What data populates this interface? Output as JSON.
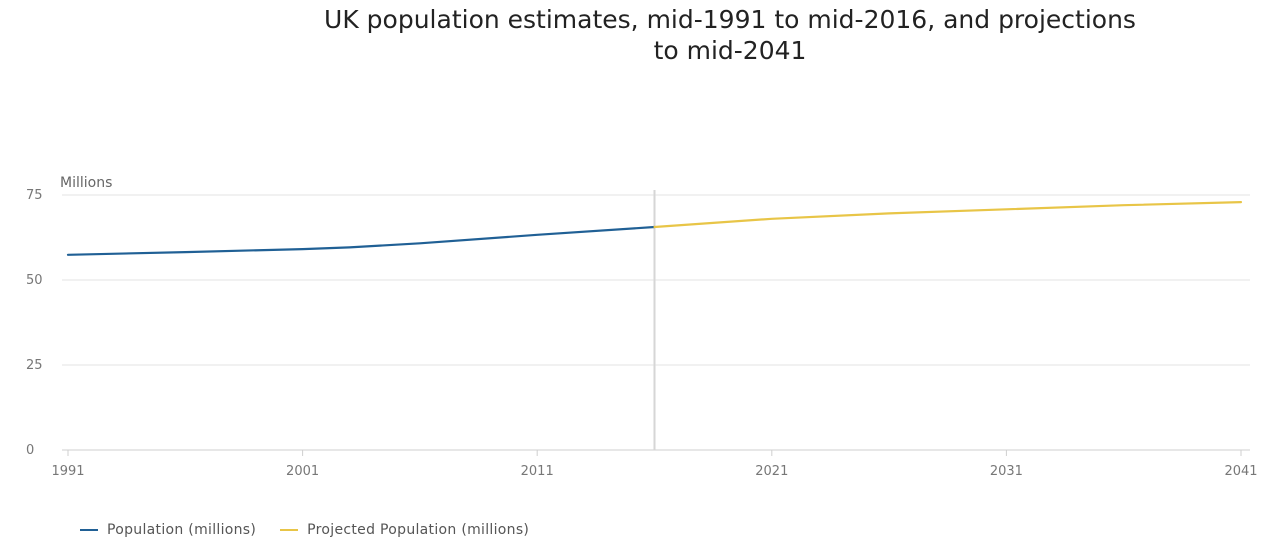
{
  "chart_data": {
    "type": "line",
    "title_line1": "UK population estimates, mid-1991 to mid-2016, and projections",
    "title_line2": "to mid-2041",
    "y_unit_label": "Millions",
    "xlabel": "",
    "ylabel": "",
    "xlim": [
      1991,
      2041
    ],
    "ylim": [
      0,
      80
    ],
    "x_ticks": [
      "1991",
      "2001",
      "2011",
      "2021",
      "2031",
      "2041"
    ],
    "y_ticks": [
      "0",
      "25",
      "50",
      "75"
    ],
    "grid": true,
    "legend_position": "bottom-left",
    "divider_year": 2016,
    "series": [
      {
        "name": "Population (millions)",
        "color": "#206095",
        "x": [
          1991,
          1996,
          2001,
          2003,
          2006,
          2011,
          2016
        ],
        "y": [
          57.4,
          58.2,
          59.1,
          59.6,
          60.8,
          63.3,
          65.6
        ]
      },
      {
        "name": "Projected Population (millions)",
        "color": "#e8c547",
        "x": [
          2016,
          2021,
          2026,
          2031,
          2036,
          2041
        ],
        "y": [
          65.6,
          68.0,
          69.6,
          70.8,
          72.0,
          72.9
        ]
      }
    ]
  }
}
